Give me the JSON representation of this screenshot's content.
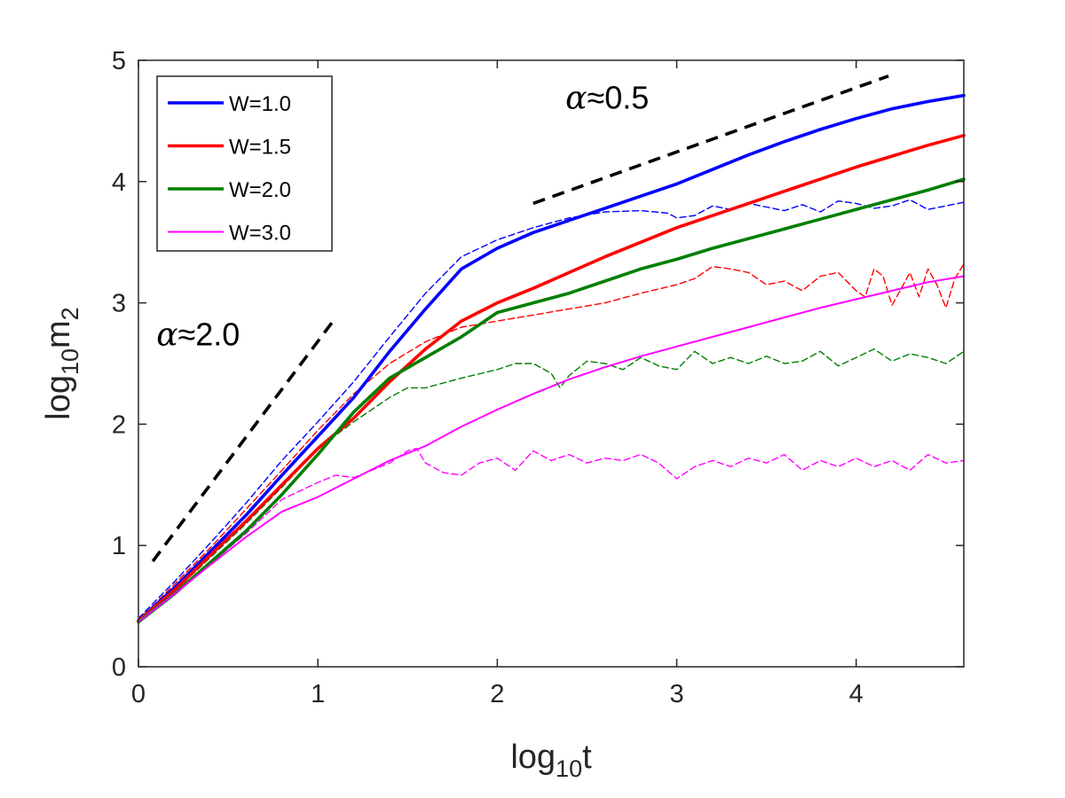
{
  "chart_data": {
    "type": "line",
    "title": "",
    "xlabel": {
      "base": "log",
      "sub": "10",
      "var": "t"
    },
    "ylabel": {
      "base": "log",
      "sub": "10",
      "var": "m",
      "var_sub": "2"
    },
    "xlim": [
      0,
      4.6
    ],
    "ylim": [
      0,
      5
    ],
    "xticks": [
      0,
      1,
      2,
      3,
      4
    ],
    "yticks": [
      0,
      1,
      2,
      3,
      4,
      5
    ],
    "xtick_labels": [
      "0",
      "1",
      "2",
      "3",
      "4"
    ],
    "ytick_labels": [
      "0",
      "1",
      "2",
      "3",
      "4",
      "5"
    ],
    "grid": false,
    "legend_position": "top-left",
    "series": [
      {
        "name": "W=1.0",
        "color": "#0000FF",
        "style": "solid",
        "x": [
          0,
          0.2,
          0.4,
          0.6,
          0.8,
          1.0,
          1.2,
          1.4,
          1.6,
          1.8,
          2.0,
          2.2,
          2.4,
          2.6,
          2.8,
          3.0,
          3.2,
          3.4,
          3.6,
          3.8,
          4.0,
          4.2,
          4.4,
          4.6
        ],
        "y": [
          0.38,
          0.65,
          0.95,
          1.25,
          1.58,
          1.9,
          2.22,
          2.6,
          2.95,
          3.28,
          3.45,
          3.58,
          3.68,
          3.78,
          3.88,
          3.98,
          4.1,
          4.22,
          4.33,
          4.43,
          4.52,
          4.6,
          4.66,
          4.71
        ]
      },
      {
        "name": "W=1.5",
        "color": "#FF0000",
        "style": "solid",
        "x": [
          0,
          0.2,
          0.4,
          0.6,
          0.8,
          1.0,
          1.2,
          1.4,
          1.6,
          1.8,
          2.0,
          2.2,
          2.4,
          2.6,
          2.8,
          3.0,
          3.2,
          3.4,
          3.6,
          3.8,
          4.0,
          4.2,
          4.4,
          4.6
        ],
        "y": [
          0.38,
          0.63,
          0.92,
          1.2,
          1.5,
          1.8,
          2.05,
          2.35,
          2.62,
          2.85,
          3.0,
          3.12,
          3.25,
          3.38,
          3.5,
          3.62,
          3.72,
          3.82,
          3.92,
          4.02,
          4.12,
          4.21,
          4.3,
          4.38
        ]
      },
      {
        "name": "W=2.0",
        "color": "#007F00",
        "style": "solid",
        "x": [
          0,
          0.2,
          0.4,
          0.6,
          0.8,
          1.0,
          1.2,
          1.4,
          1.6,
          1.8,
          2.0,
          2.2,
          2.4,
          2.6,
          2.8,
          3.0,
          3.2,
          3.4,
          3.6,
          3.8,
          4.0,
          4.2,
          4.4,
          4.6
        ],
        "y": [
          0.37,
          0.6,
          0.86,
          1.12,
          1.42,
          1.75,
          2.1,
          2.38,
          2.55,
          2.72,
          2.92,
          3.0,
          3.08,
          3.18,
          3.28,
          3.36,
          3.45,
          3.53,
          3.61,
          3.69,
          3.77,
          3.85,
          3.93,
          4.02
        ]
      },
      {
        "name": "W=3.0",
        "color": "#FF00FF",
        "style": "solid",
        "x": [
          0,
          0.2,
          0.4,
          0.6,
          0.8,
          1.0,
          1.2,
          1.4,
          1.6,
          1.8,
          2.0,
          2.2,
          2.4,
          2.6,
          2.8,
          3.0,
          3.2,
          3.4,
          3.6,
          3.8,
          4.0,
          4.2,
          4.4,
          4.6
        ],
        "y": [
          0.37,
          0.6,
          0.84,
          1.07,
          1.28,
          1.4,
          1.55,
          1.7,
          1.82,
          1.98,
          2.12,
          2.25,
          2.37,
          2.47,
          2.56,
          2.64,
          2.72,
          2.8,
          2.88,
          2.96,
          3.03,
          3.1,
          3.17,
          3.22
        ]
      },
      {
        "name": "W=1.0 (dashed)",
        "color": "#0000FF",
        "style": "dashed",
        "x": [
          0,
          0.2,
          0.4,
          0.6,
          0.8,
          1.0,
          1.2,
          1.4,
          1.6,
          1.8,
          2.0,
          2.2,
          2.4,
          2.6,
          2.8,
          2.95,
          3.0,
          3.1,
          3.2,
          3.3,
          3.4,
          3.5,
          3.6,
          3.7,
          3.8,
          3.9,
          4.0,
          4.1,
          4.2,
          4.3,
          4.4,
          4.5,
          4.6
        ],
        "y": [
          0.4,
          0.7,
          1.02,
          1.35,
          1.7,
          2.02,
          2.35,
          2.72,
          3.08,
          3.38,
          3.52,
          3.62,
          3.7,
          3.75,
          3.76,
          3.74,
          3.7,
          3.72,
          3.8,
          3.77,
          3.82,
          3.79,
          3.76,
          3.81,
          3.75,
          3.84,
          3.82,
          3.78,
          3.8,
          3.85,
          3.77,
          3.8,
          3.83
        ]
      },
      {
        "name": "W=1.5 (dashed)",
        "color": "#FF0000",
        "style": "dashed",
        "x": [
          0,
          0.2,
          0.4,
          0.6,
          0.8,
          1.0,
          1.2,
          1.4,
          1.6,
          1.8,
          2.0,
          2.2,
          2.4,
          2.6,
          2.8,
          3.0,
          3.1,
          3.2,
          3.3,
          3.4,
          3.5,
          3.6,
          3.7,
          3.8,
          3.9,
          4.0,
          4.05,
          4.1,
          4.15,
          4.2,
          4.3,
          4.35,
          4.4,
          4.45,
          4.5,
          4.55,
          4.6
        ],
        "y": [
          0.38,
          0.68,
          0.98,
          1.3,
          1.62,
          1.95,
          2.25,
          2.5,
          2.68,
          2.8,
          2.85,
          2.9,
          2.95,
          3.0,
          3.08,
          3.15,
          3.2,
          3.3,
          3.28,
          3.25,
          3.15,
          3.18,
          3.1,
          3.22,
          3.25,
          3.1,
          3.05,
          3.28,
          3.22,
          2.98,
          3.25,
          3.05,
          3.28,
          3.15,
          2.96,
          3.2,
          3.32
        ]
      },
      {
        "name": "W=2.0 (dashed)",
        "color": "#007F00",
        "style": "dashed",
        "x": [
          0,
          0.2,
          0.4,
          0.6,
          0.8,
          1.0,
          1.2,
          1.4,
          1.5,
          1.6,
          1.8,
          2.0,
          2.1,
          2.2,
          2.3,
          2.35,
          2.4,
          2.5,
          2.6,
          2.7,
          2.8,
          2.9,
          3.0,
          3.1,
          3.2,
          3.3,
          3.4,
          3.5,
          3.6,
          3.7,
          3.8,
          3.9,
          4.0,
          4.1,
          4.2,
          4.3,
          4.4,
          4.5,
          4.6
        ],
        "y": [
          0.38,
          0.62,
          0.9,
          1.18,
          1.48,
          1.8,
          2.02,
          2.22,
          2.3,
          2.3,
          2.38,
          2.45,
          2.5,
          2.5,
          2.42,
          2.3,
          2.4,
          2.52,
          2.5,
          2.45,
          2.55,
          2.48,
          2.45,
          2.6,
          2.5,
          2.55,
          2.5,
          2.56,
          2.5,
          2.52,
          2.6,
          2.48,
          2.55,
          2.62,
          2.52,
          2.58,
          2.55,
          2.5,
          2.6
        ]
      },
      {
        "name": "W=3.0 (dashed)",
        "color": "#FF00FF",
        "style": "dashed",
        "x": [
          0,
          0.2,
          0.4,
          0.6,
          0.8,
          1.0,
          1.1,
          1.2,
          1.3,
          1.4,
          1.5,
          1.55,
          1.6,
          1.7,
          1.8,
          1.9,
          2.0,
          2.1,
          2.2,
          2.3,
          2.4,
          2.5,
          2.6,
          2.7,
          2.8,
          2.9,
          3.0,
          3.1,
          3.2,
          3.3,
          3.4,
          3.5,
          3.6,
          3.7,
          3.8,
          3.9,
          4.0,
          4.1,
          4.2,
          4.3,
          4.4,
          4.5,
          4.6
        ],
        "y": [
          0.38,
          0.6,
          0.85,
          1.1,
          1.38,
          1.52,
          1.58,
          1.56,
          1.62,
          1.68,
          1.78,
          1.8,
          1.68,
          1.6,
          1.58,
          1.68,
          1.72,
          1.62,
          1.78,
          1.7,
          1.75,
          1.68,
          1.72,
          1.7,
          1.75,
          1.68,
          1.55,
          1.65,
          1.7,
          1.65,
          1.72,
          1.68,
          1.75,
          1.62,
          1.7,
          1.65,
          1.72,
          1.65,
          1.7,
          1.62,
          1.75,
          1.68,
          1.7
        ]
      }
    ],
    "reference_lines": [
      {
        "name": "slope-2",
        "x": [
          0.08,
          1.1
        ],
        "y": [
          0.87,
          2.88
        ],
        "color": "#000000",
        "style": "dashed"
      },
      {
        "name": "slope-0.5",
        "x": [
          2.2,
          4.18
        ],
        "y": [
          3.82,
          4.87
        ],
        "color": "#000000",
        "style": "dashed"
      }
    ],
    "annotations": [
      {
        "name": "alpha-2",
        "symbol": "α",
        "text": "≈2.0",
        "x": 0.1,
        "y": 2.65
      },
      {
        "name": "alpha-0.5",
        "symbol": "α",
        "text": "≈0.5",
        "x": 2.38,
        "y": 4.6
      }
    ],
    "legend": [
      "W=1.0",
      "W=1.5",
      "W=2.0",
      "W=3.0"
    ]
  }
}
